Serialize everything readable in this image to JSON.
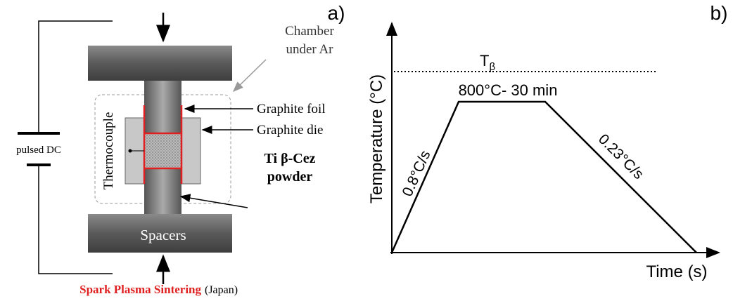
{
  "panel_a": {
    "label": "a)",
    "chamber": [
      "Chamber",
      "under Ar"
    ],
    "graphite_foil": "Graphite foil",
    "graphite_die": "Graphite die",
    "powder": [
      "Ti β-Cez",
      "powder"
    ],
    "source": "pulsed DC",
    "thermocouple": "Thermocouple",
    "spacers": "Spacers",
    "caption": {
      "name": "Spark Plasma Sintering",
      "origin": "(Japan)"
    }
  },
  "panel_b": {
    "label": "b)",
    "t_beta": {
      "base": "T",
      "sub": "β"
    },
    "dwell": "800°C- 30 min",
    "heating_rate": "0.8°C/s",
    "cooling_rate": "0.23°C/s",
    "y_axis": "Temperature (°C)",
    "x_axis": "Time (s)"
  }
}
